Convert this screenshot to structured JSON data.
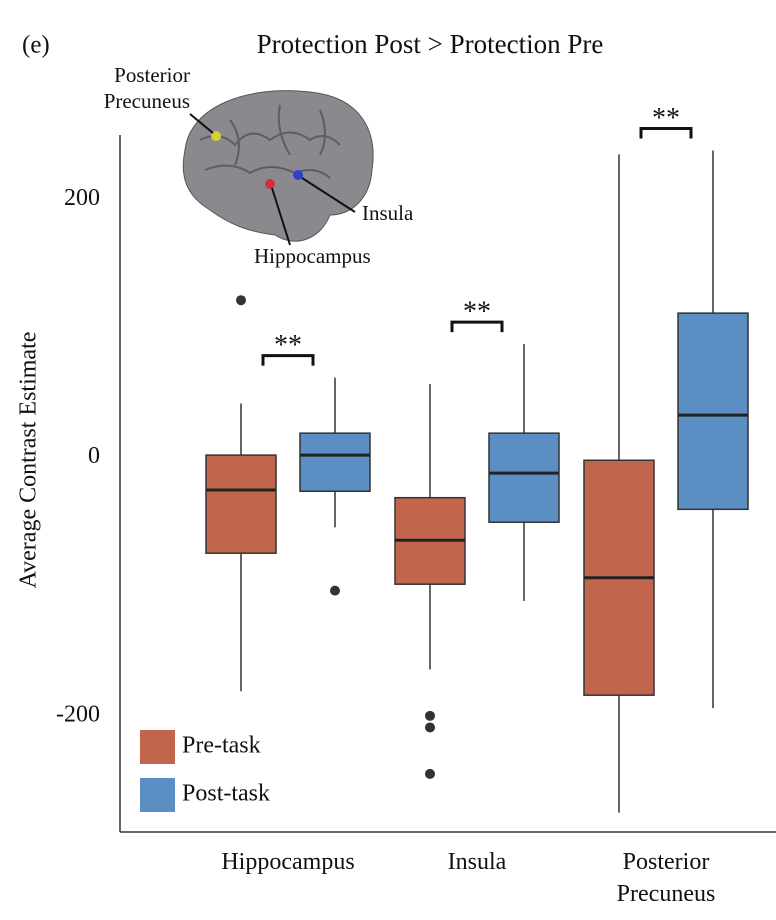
{
  "chart_data": {
    "type": "box",
    "panel_label": "(e)",
    "title": "Protection Post > Protection Pre",
    "y_label": "Average Contrast Estimate",
    "categories": [
      "Hippocampus",
      "Insula",
      "Posterior Precuneus"
    ],
    "ylim": [
      -290,
      250
    ],
    "yticks": [
      -200,
      0,
      200
    ],
    "grid": false,
    "legend_position": "lower left",
    "significance": [
      "**",
      "**",
      "**"
    ],
    "series": [
      {
        "name": "Pre-task",
        "color": "#c1664d",
        "values": [
          {
            "min": -181,
            "q1": -74,
            "median": -25,
            "q3": 2,
            "max": 42,
            "outliers": [
              122
            ]
          },
          {
            "min": -164,
            "q1": -98,
            "median": -64,
            "q3": -31,
            "max": 57,
            "outliers": [
              -200,
              -209,
              -245
            ]
          },
          {
            "min": -275,
            "q1": -184,
            "median": -93,
            "q3": -2,
            "max": 235,
            "outliers": []
          }
        ]
      },
      {
        "name": "Post-task",
        "color": "#5b8fc3",
        "values": [
          {
            "min": -54,
            "q1": -26,
            "median": 2,
            "q3": 19,
            "max": 62,
            "outliers": [
              -103
            ]
          },
          {
            "min": -111,
            "q1": -50,
            "median": -12,
            "q3": 19,
            "max": 88,
            "outliers": []
          },
          {
            "min": -194,
            "q1": -40,
            "median": 33,
            "q3": 112,
            "max": 238,
            "outliers": []
          }
        ]
      }
    ],
    "inset_labels": {
      "posterior_precuneus": "Posterior Precuneus",
      "insula": "Insula",
      "hippocampus": "Hippocampus"
    }
  }
}
